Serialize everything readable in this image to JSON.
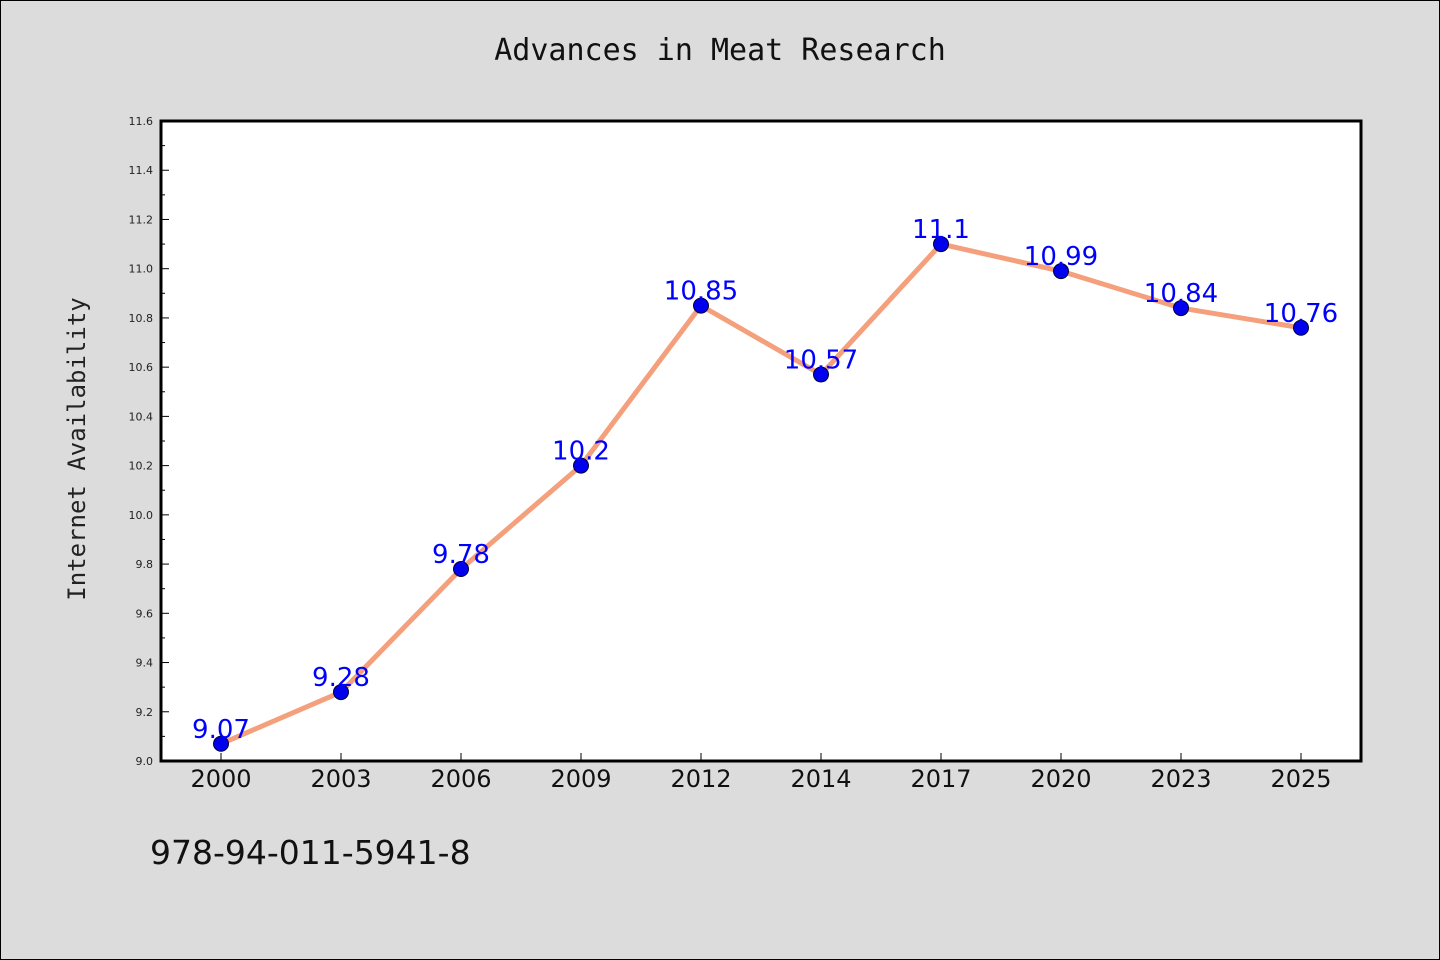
{
  "colors": {
    "background": "#dcdcdc",
    "plot_background": "#ffffff",
    "line": "#f4a07c",
    "marker": "#0000ee",
    "label": "#0000ff"
  },
  "footer": {
    "isbn": "978-94-011-5941-8"
  },
  "chart_data": {
    "type": "line",
    "title": "Advances in Meat Research",
    "xlabel": "",
    "ylabel": "Internet Availability",
    "categories": [
      "2000",
      "2003",
      "2006",
      "2009",
      "2012",
      "2014",
      "2017",
      "2020",
      "2023",
      "2025"
    ],
    "series": [
      {
        "values": [
          9.07,
          9.28,
          9.78,
          10.2,
          10.85,
          10.57,
          11.1,
          10.99,
          10.84,
          10.76
        ],
        "labels": [
          "9.07",
          "9.28",
          "9.78",
          "10.2",
          "10.85",
          "10.57",
          "11.1",
          "10.99",
          "10.84",
          "10.76"
        ]
      }
    ],
    "ylim": [
      9.0,
      11.6
    ],
    "yticks": [
      "9.0",
      "9.2",
      "9.4",
      "9.6",
      "9.8",
      "10.0",
      "10.2",
      "10.4",
      "10.6",
      "10.8",
      "11.0",
      "11.2",
      "11.4",
      "11.6"
    ],
    "minor_tick_step": 0.1,
    "grid": false,
    "legend": "none",
    "data_labels": true
  }
}
